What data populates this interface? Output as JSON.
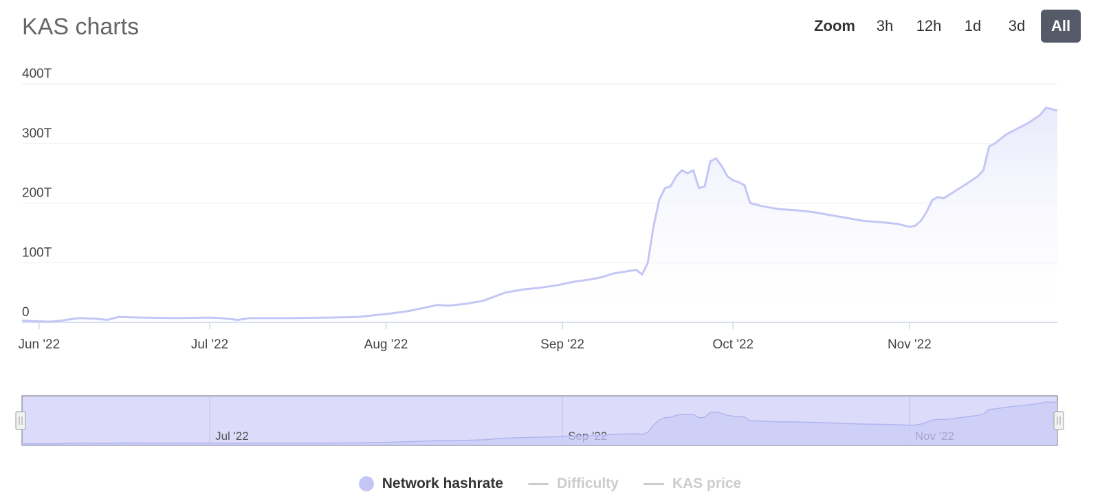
{
  "header": {
    "title": "KAS charts",
    "zoom_label": "Zoom",
    "zoom_buttons": [
      {
        "label": "3h",
        "active": false
      },
      {
        "label": "12h",
        "active": false
      },
      {
        "label": "1d",
        "active": false
      },
      {
        "label": "3d",
        "active": false
      },
      {
        "label": "All",
        "active": true
      }
    ]
  },
  "colors": {
    "series": "#c4c6f5",
    "series_fill_top": "#e6e7fb",
    "navigator_fill": "#dcdcfa",
    "navigator_series": "#b2b5ee",
    "grid": "#eeeeee",
    "axis": "#ccd6eb",
    "legend_off": "#cccccc"
  },
  "chart_data": {
    "type": "area",
    "title": "",
    "y_unit": "T",
    "ylim": [
      0,
      400
    ],
    "y_ticks": [
      0,
      100,
      200,
      300,
      400
    ],
    "y_tick_labels": [
      "0",
      "100T",
      "200T",
      "300T",
      "400T"
    ],
    "x_range": [
      "2022-05-29",
      "2022-11-27"
    ],
    "x_ticks": [
      {
        "date": "2022-06-01",
        "label": "Jun '22"
      },
      {
        "date": "2022-07-01",
        "label": "Jul '22"
      },
      {
        "date": "2022-08-01",
        "label": "Aug '22"
      },
      {
        "date": "2022-09-01",
        "label": "Sep '22"
      },
      {
        "date": "2022-10-01",
        "label": "Oct '22"
      },
      {
        "date": "2022-11-01",
        "label": "Nov '22"
      }
    ],
    "navigator_ticks": [
      {
        "date": "2022-07-01",
        "label": "Jul '22"
      },
      {
        "date": "2022-09-01",
        "label": "Sep '22"
      },
      {
        "date": "2022-11-01",
        "label": "Nov '22"
      }
    ],
    "grid": true,
    "legend_position": "bottom-center",
    "series": [
      {
        "name": "Network hashrate",
        "visible": true,
        "points": [
          [
            "2022-05-29",
            3
          ],
          [
            "2022-05-31",
            2
          ],
          [
            "2022-06-03",
            1
          ],
          [
            "2022-06-05",
            3
          ],
          [
            "2022-06-08",
            7
          ],
          [
            "2022-06-11",
            6
          ],
          [
            "2022-06-13",
            4
          ],
          [
            "2022-06-15",
            9
          ],
          [
            "2022-06-19",
            8
          ],
          [
            "2022-06-25",
            7
          ],
          [
            "2022-07-01",
            8
          ],
          [
            "2022-07-03",
            7
          ],
          [
            "2022-07-06",
            4
          ],
          [
            "2022-07-08",
            7
          ],
          [
            "2022-07-15",
            7
          ],
          [
            "2022-07-22",
            8
          ],
          [
            "2022-07-27",
            9
          ],
          [
            "2022-07-30",
            12
          ],
          [
            "2022-08-02",
            15
          ],
          [
            "2022-08-05",
            19
          ],
          [
            "2022-08-08",
            25
          ],
          [
            "2022-08-10",
            29
          ],
          [
            "2022-08-12",
            28
          ],
          [
            "2022-08-15",
            31
          ],
          [
            "2022-08-18",
            36
          ],
          [
            "2022-08-20",
            43
          ],
          [
            "2022-08-22",
            50
          ],
          [
            "2022-08-25",
            55
          ],
          [
            "2022-08-28",
            58
          ],
          [
            "2022-08-31",
            62
          ],
          [
            "2022-09-03",
            68
          ],
          [
            "2022-09-06",
            72
          ],
          [
            "2022-09-08",
            76
          ],
          [
            "2022-09-10",
            82
          ],
          [
            "2022-09-12",
            85
          ],
          [
            "2022-09-14",
            88
          ],
          [
            "2022-09-15",
            80
          ],
          [
            "2022-09-16",
            100
          ],
          [
            "2022-09-17",
            160
          ],
          [
            "2022-09-18",
            205
          ],
          [
            "2022-09-19",
            225
          ],
          [
            "2022-09-20",
            228
          ],
          [
            "2022-09-21",
            245
          ],
          [
            "2022-09-22",
            255
          ],
          [
            "2022-09-23",
            250
          ],
          [
            "2022-09-24",
            255
          ],
          [
            "2022-09-25",
            225
          ],
          [
            "2022-09-26",
            228
          ],
          [
            "2022-09-27",
            270
          ],
          [
            "2022-09-28",
            275
          ],
          [
            "2022-09-29",
            262
          ],
          [
            "2022-09-30",
            245
          ],
          [
            "2022-10-01",
            238
          ],
          [
            "2022-10-02",
            235
          ],
          [
            "2022-10-03",
            230
          ],
          [
            "2022-10-04",
            200
          ],
          [
            "2022-10-06",
            195
          ],
          [
            "2022-10-09",
            190
          ],
          [
            "2022-10-12",
            188
          ],
          [
            "2022-10-15",
            185
          ],
          [
            "2022-10-18",
            180
          ],
          [
            "2022-10-21",
            175
          ],
          [
            "2022-10-24",
            170
          ],
          [
            "2022-10-27",
            168
          ],
          [
            "2022-10-30",
            165
          ],
          [
            "2022-11-01",
            160
          ],
          [
            "2022-11-02",
            162
          ],
          [
            "2022-11-03",
            170
          ],
          [
            "2022-11-04",
            185
          ],
          [
            "2022-11-05",
            205
          ],
          [
            "2022-11-06",
            210
          ],
          [
            "2022-11-07",
            208
          ],
          [
            "2022-11-09",
            220
          ],
          [
            "2022-11-11",
            232
          ],
          [
            "2022-11-13",
            245
          ],
          [
            "2022-11-14",
            255
          ],
          [
            "2022-11-15",
            295
          ],
          [
            "2022-11-16",
            300
          ],
          [
            "2022-11-18",
            315
          ],
          [
            "2022-11-20",
            325
          ],
          [
            "2022-11-22",
            335
          ],
          [
            "2022-11-24",
            348
          ],
          [
            "2022-11-25",
            360
          ],
          [
            "2022-11-27",
            355
          ]
        ]
      },
      {
        "name": "Difficulty",
        "visible": false
      },
      {
        "name": "KAS price",
        "visible": false
      }
    ]
  },
  "legend": [
    {
      "label": "Network hashrate",
      "visible": true
    },
    {
      "label": "Difficulty",
      "visible": false
    },
    {
      "label": "KAS price",
      "visible": false
    }
  ]
}
